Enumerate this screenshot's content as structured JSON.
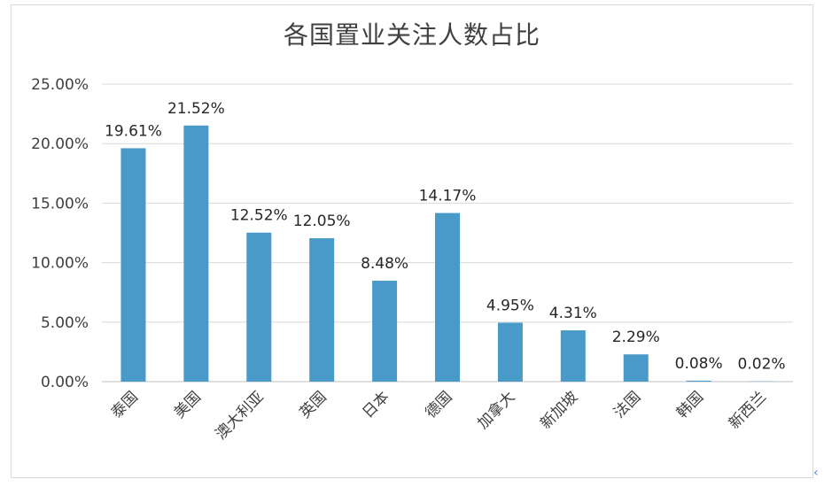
{
  "chart_data": {
    "type": "bar",
    "title": "各国置业关注人数占比",
    "categories": [
      "泰国",
      "美国",
      "澳大利亚",
      "英国",
      "日本",
      "德国",
      "加拿大",
      "新加坡",
      "法国",
      "韩国",
      "新西兰"
    ],
    "values": [
      19.61,
      21.52,
      12.52,
      12.05,
      8.48,
      14.17,
      4.95,
      4.31,
      2.29,
      0.08,
      0.02
    ],
    "value_labels": [
      "19.61%",
      "21.52%",
      "12.52%",
      "12.05%",
      "8.48%",
      "14.17%",
      "4.95%",
      "4.31%",
      "2.29%",
      "0.08%",
      "0.02%"
    ],
    "yticks": [
      "0.00%",
      "5.00%",
      "10.00%",
      "15.00%",
      "20.00%",
      "25.00%"
    ],
    "ylim": [
      0,
      25
    ],
    "grid": true,
    "bar_color": "#4a9ac9"
  }
}
